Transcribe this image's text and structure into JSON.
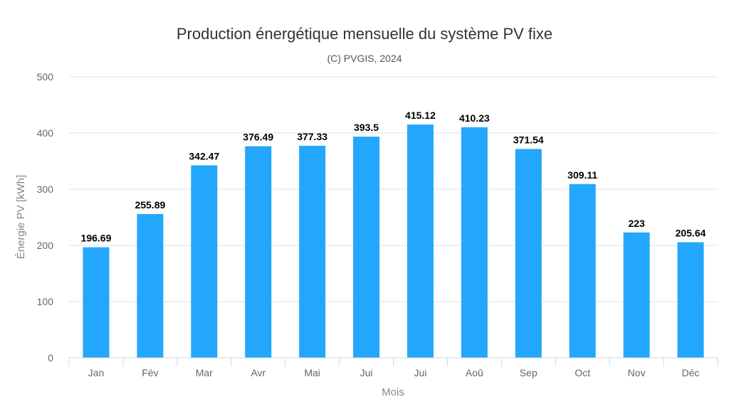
{
  "chart_data": {
    "type": "bar",
    "title": "Production énergétique mensuelle du système PV fixe",
    "subtitle": "(C) PVGIS, 2024",
    "xlabel": "Mois",
    "ylabel": "Énergie PV [kWh]",
    "categories": [
      "Jan",
      "Fév",
      "Mar",
      "Avr",
      "Mai",
      "Jui",
      "Jui",
      "Aoû",
      "Sep",
      "Oct",
      "Nov",
      "Déc"
    ],
    "values": [
      196.69,
      255.89,
      342.47,
      376.49,
      377.33,
      393.5,
      415.12,
      410.23,
      371.54,
      309.11,
      223,
      205.64
    ],
    "data_labels": [
      "196.69",
      "255.89",
      "342.47",
      "376.49",
      "377.33",
      "393.5",
      "415.12",
      "410.23",
      "371.54",
      "309.11",
      "223",
      "205.64"
    ],
    "ylim": [
      0,
      500
    ],
    "yticks": [
      "0",
      "100",
      "200",
      "300",
      "400",
      "500"
    ],
    "grid": true,
    "colors": {
      "bar": "#22a7fc",
      "grid": "#e0e0e0",
      "axis": "#ccd6eb"
    }
  }
}
